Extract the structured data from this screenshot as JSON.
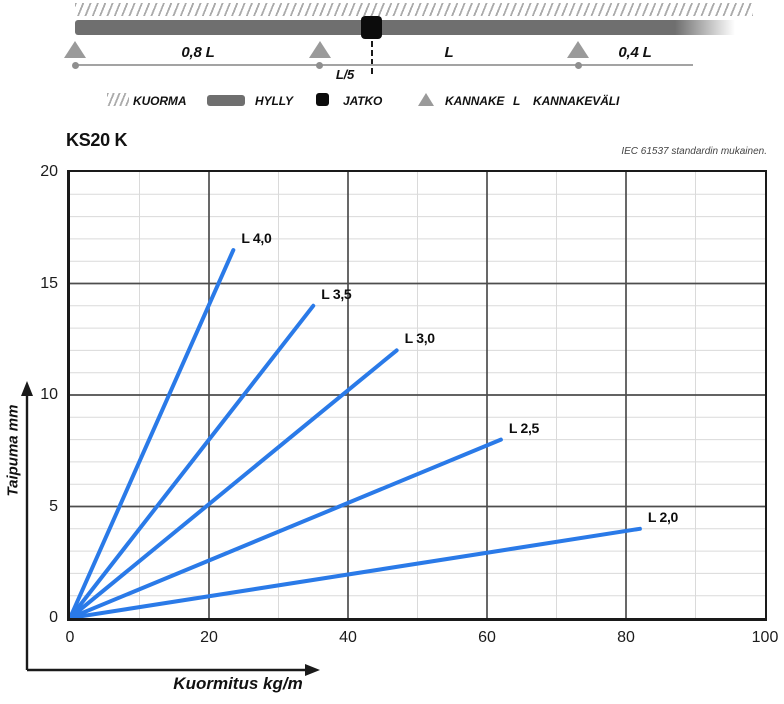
{
  "diagram": {
    "dim_labels": {
      "left": "0,8 L",
      "l5": "L/5",
      "mid": "L",
      "right": "0,4 L"
    },
    "legend": [
      {
        "icon": "hatch-icon",
        "label": "KUORMA"
      },
      {
        "icon": "shelf-icon",
        "label": "HYLLY"
      },
      {
        "icon": "joint-icon",
        "label": "JATKO"
      },
      {
        "icon": "support-icon",
        "label": "KANNAKE"
      },
      {
        "icon": "L-glyph",
        "label": "KANNAKEVÄLI",
        "glyph": "L"
      }
    ]
  },
  "chart": {
    "standard_note": "IEC 61537 standardin mukainen."
  },
  "chart_data": {
    "type": "line",
    "title": "KS20 K",
    "xlabel": "Kuormitus kg/m",
    "ylabel": "Taipuma mm",
    "xlim": [
      0,
      100
    ],
    "ylim": [
      0,
      20
    ],
    "x_ticks": [
      0,
      20,
      40,
      60,
      80,
      100
    ],
    "y_ticks": [
      0,
      5,
      10,
      15,
      20
    ],
    "minor_grid_x_step": 10,
    "minor_grid_y_step": 1,
    "grid": true,
    "legend_position": "inline-labels",
    "line_color": "#2a7ae8",
    "major_grid_color": "#4d4d4d",
    "minor_grid_color": "#dadada",
    "series": [
      {
        "name": "L 4,0",
        "points": [
          [
            0,
            0
          ],
          [
            23.5,
            16.5
          ]
        ]
      },
      {
        "name": "L 3,5",
        "points": [
          [
            0,
            0
          ],
          [
            35,
            14
          ]
        ]
      },
      {
        "name": "L 3,0",
        "points": [
          [
            0,
            0
          ],
          [
            47,
            12
          ]
        ]
      },
      {
        "name": "L 2,5",
        "points": [
          [
            0,
            0
          ],
          [
            62,
            8
          ]
        ]
      },
      {
        "name": "L 2,0",
        "points": [
          [
            0,
            0
          ],
          [
            82,
            4
          ]
        ]
      }
    ]
  }
}
